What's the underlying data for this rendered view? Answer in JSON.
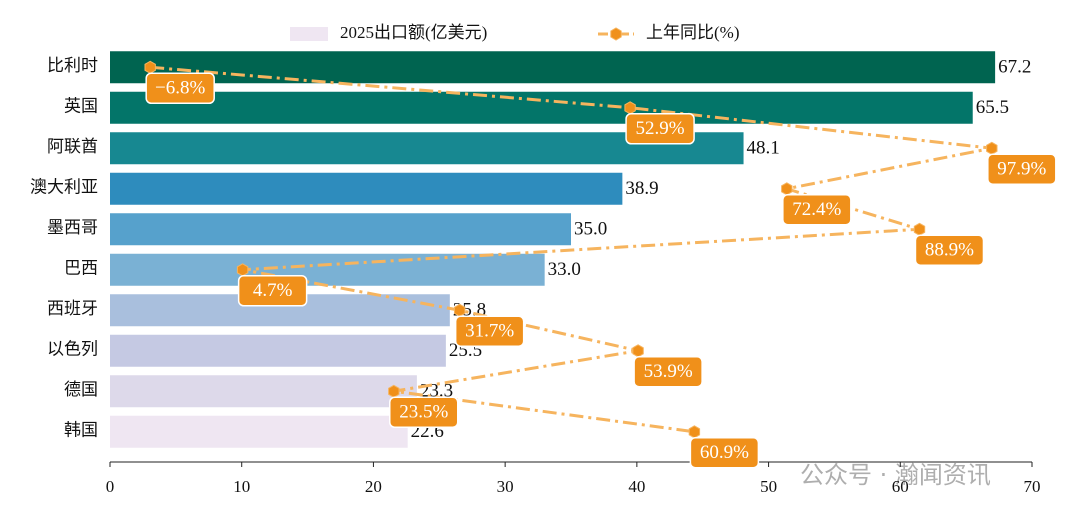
{
  "chart_data": {
    "type": "bar",
    "categories": [
      "比利时",
      "英国",
      "阿联酋",
      "澳大利亚",
      "墨西哥",
      "巴西",
      "西班牙",
      "以色列",
      "德国",
      "韩国"
    ],
    "series": [
      {
        "name": "2025出口额(亿美元)",
        "type": "bar",
        "colors": [
          "#006450",
          "#037569",
          "#178891",
          "#2e8cbd",
          "#56a1cc",
          "#7ab1d4",
          "#a9bfdd",
          "#c5c9e3",
          "#ddd9ea",
          "#efe6f2"
        ],
        "values": [
          67.2,
          65.5,
          48.1,
          38.9,
          35.0,
          33.0,
          25.8,
          25.5,
          23.3,
          22.6
        ],
        "value_labels": [
          "67.2",
          "65.5",
          "48.1",
          "38.9",
          "35.0",
          "33.0",
          "25.8",
          "25.5",
          "23.3",
          "22.6"
        ]
      },
      {
        "name": "上年同比(%)",
        "type": "line",
        "axis": "x2",
        "color": "#f6b45e",
        "label_color": "#f0901a",
        "values": [
          -6.8,
          52.9,
          97.9,
          72.4,
          88.9,
          4.7,
          31.7,
          53.9,
          23.5,
          60.9
        ],
        "value_labels": [
          "−6.8%",
          "52.9%",
          "97.9%",
          "72.4%",
          "88.9%",
          "4.7%",
          "31.7%",
          "53.9%",
          "23.5%",
          "60.9%"
        ]
      }
    ],
    "xlim": [
      0,
      70
    ],
    "xticks": [
      0,
      10,
      20,
      30,
      40,
      50,
      60,
      70
    ],
    "x2lim": [
      -11.8,
      102.9
    ],
    "watermark": "公众号 · 瀚闻资讯"
  }
}
